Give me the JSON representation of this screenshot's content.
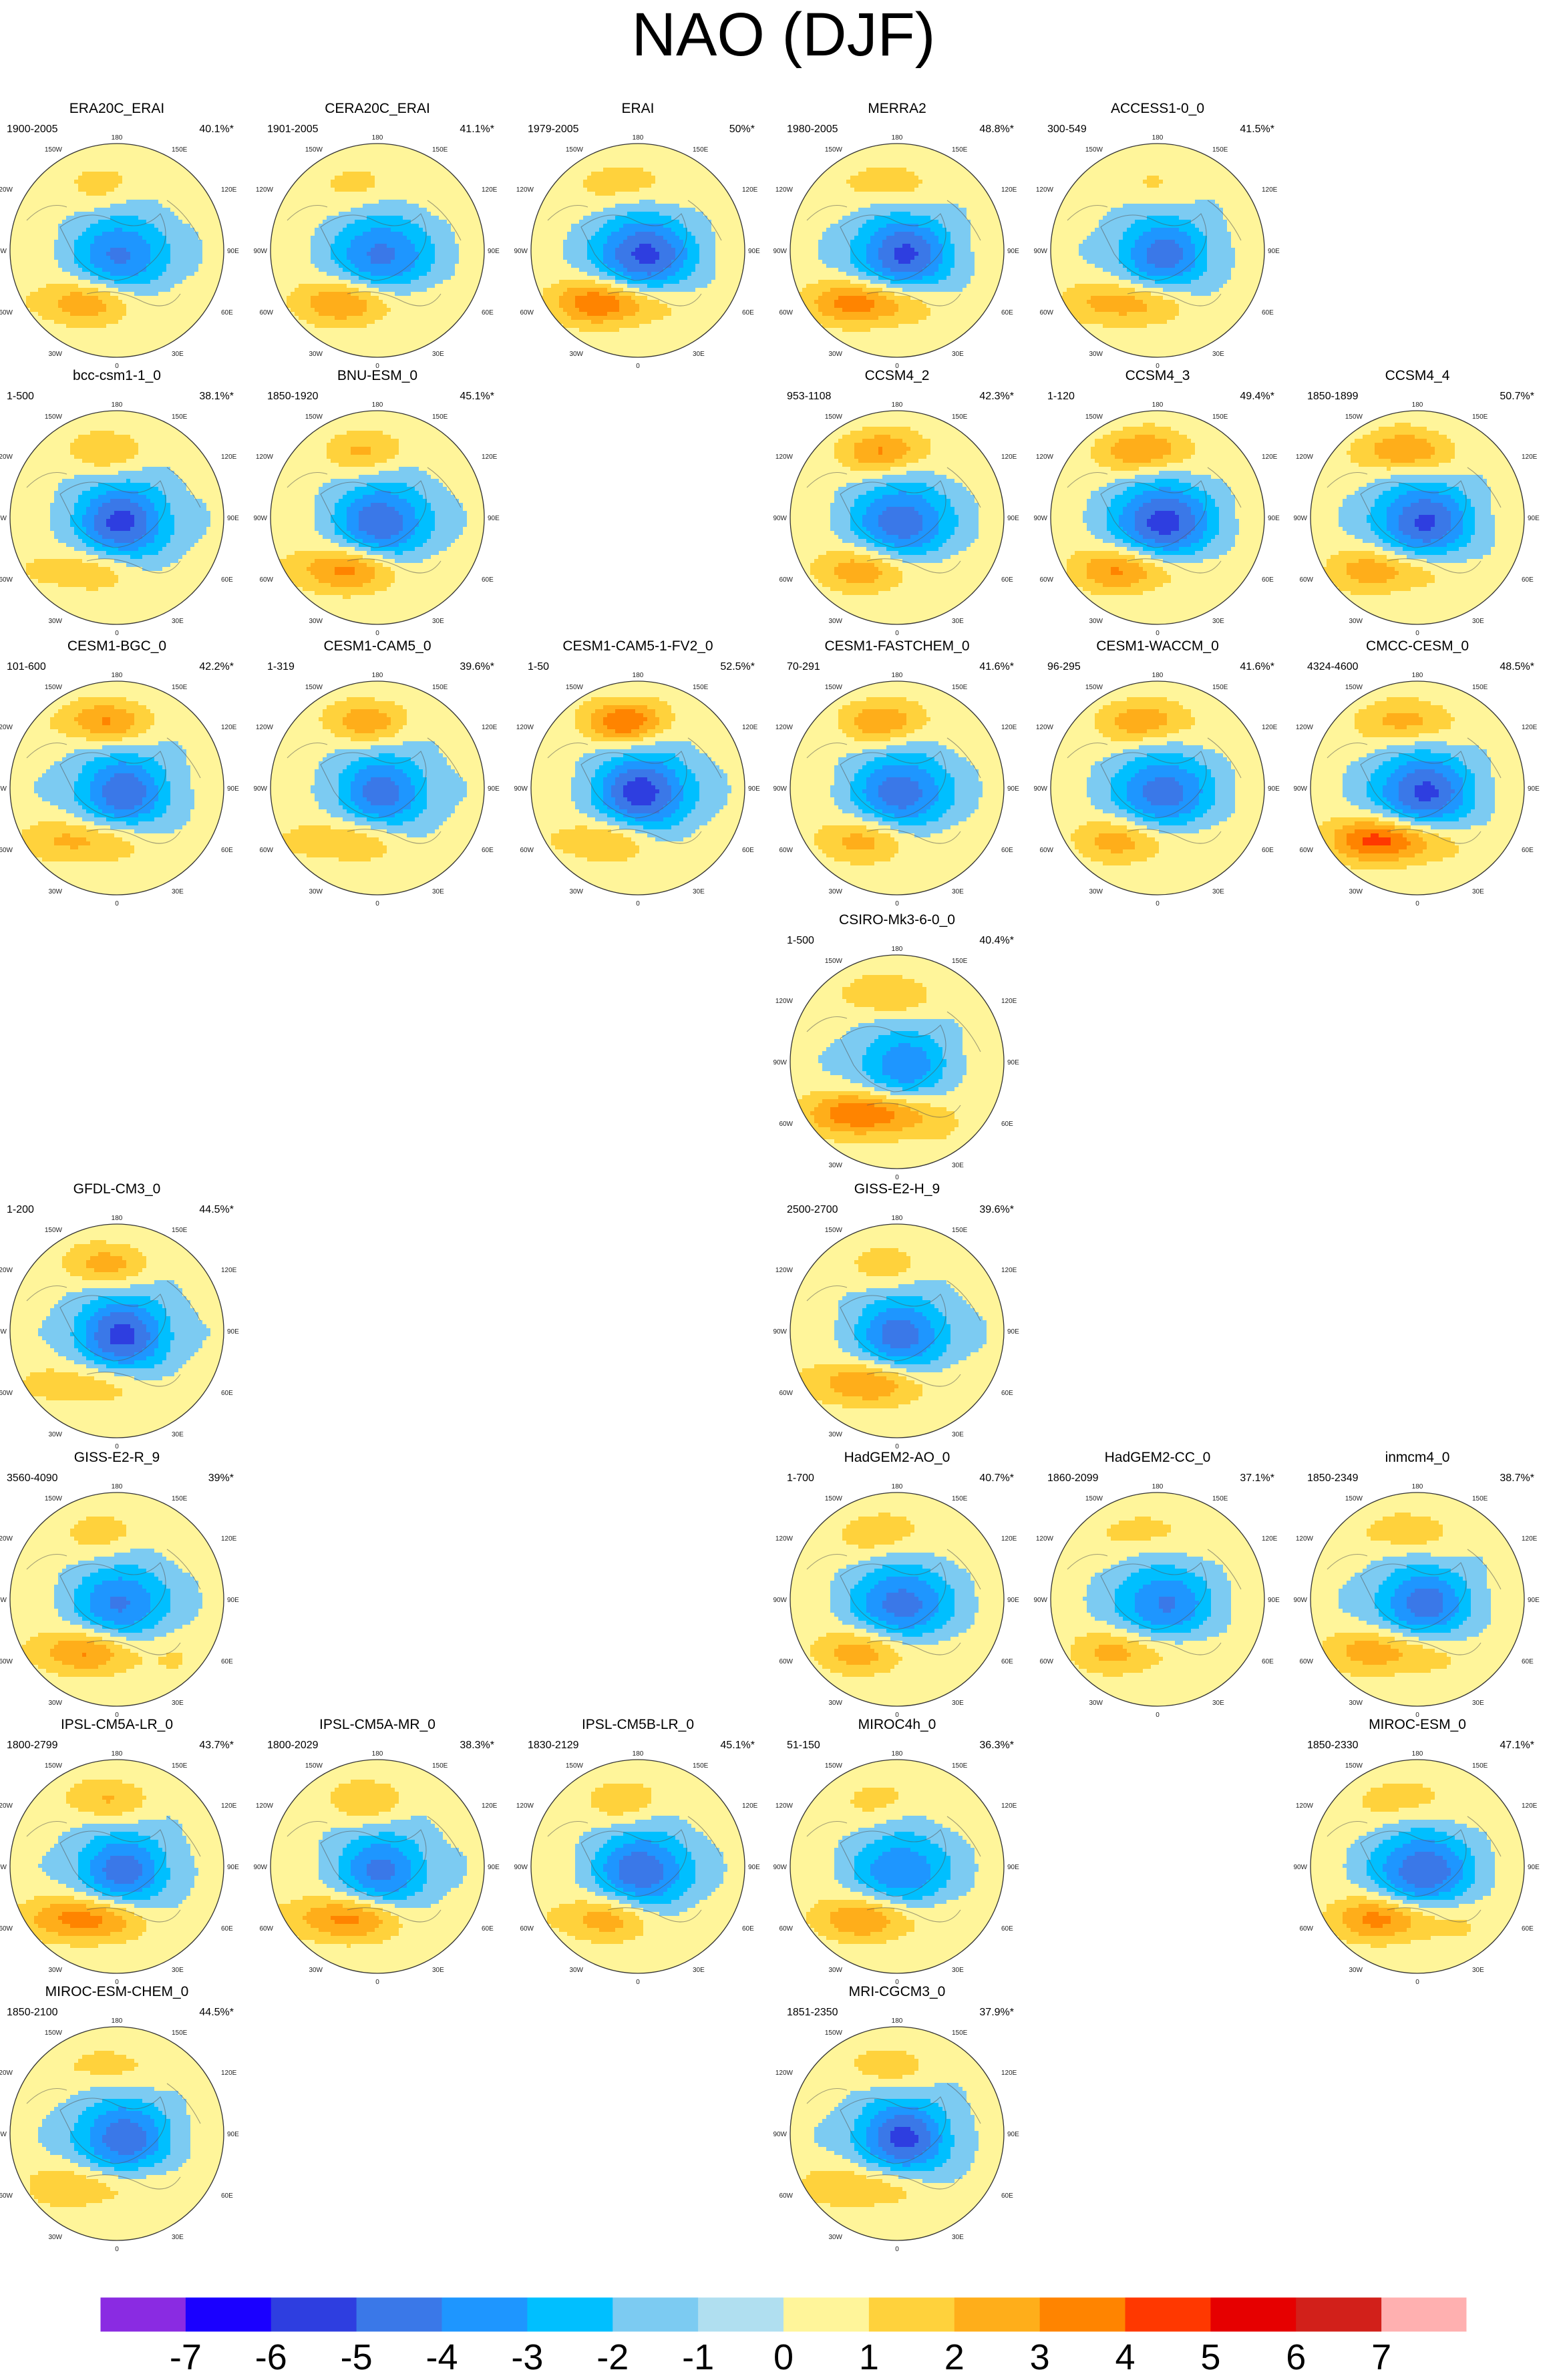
{
  "title": "NAO (DJF)",
  "chart_data": {
    "type": "contour-map-panels",
    "title": "NAO (DJF)",
    "projection": "north polar stereographic",
    "map_labels": {
      "top": "180",
      "bottom": "0",
      "left": "90W",
      "right": "90E",
      "upper_left": "150W",
      "upper_right": "150E",
      "mid_upper_left": "120W",
      "mid_upper_right": "120E",
      "mid_lower_left": "60W",
      "mid_lower_right": "60E",
      "lower_left": "30W",
      "lower_right": "30E"
    },
    "panels": [
      {
        "name": "ERA20C_ERAI",
        "years": "1900-2005",
        "percent": "40.1%*",
        "row": 0,
        "col": 0,
        "pattern": [
          -3.6,
          2.6,
          1.0,
          0.2
        ]
      },
      {
        "name": "CERA20C_ERAI",
        "years": "1901-2005",
        "percent": "41.1%*",
        "row": 0,
        "col": 1,
        "pattern": [
          -3.8,
          2.9,
          1.0,
          0.2
        ]
      },
      {
        "name": "ERAI",
        "years": "1979-2005",
        "percent": "50%*",
        "row": 0,
        "col": 2,
        "pattern": [
          -4.8,
          4.0,
          1.4,
          0.2
        ]
      },
      {
        "name": "MERRA2",
        "years": "1980-2005",
        "percent": "48.8%*",
        "row": 0,
        "col": 3,
        "pattern": [
          -4.6,
          3.8,
          1.4,
          0.2
        ]
      },
      {
        "name": "ACCESS1-0_0",
        "years": "300-549",
        "percent": "41.5%*",
        "row": 0,
        "col": 4,
        "pattern": [
          -3.8,
          2.8,
          0.8,
          0.2
        ]
      },
      {
        "name": "bcc-csm1-1_0",
        "years": "1-500",
        "percent": "38.1%*",
        "row": 1,
        "col": 0,
        "pattern": [
          -4.6,
          1.9,
          1.6,
          0.2
        ]
      },
      {
        "name": "BNU-ESM_0",
        "years": "1850-1920",
        "percent": "45.1%*",
        "row": 1,
        "col": 1,
        "pattern": [
          -4.2,
          3.3,
          1.8,
          0.2
        ]
      },
      {
        "name": "CCSM4_2",
        "years": "953-1108",
        "percent": "42.3%*",
        "row": 1,
        "col": 3,
        "pattern": [
          -4.2,
          2.6,
          2.8,
          0.2
        ]
      },
      {
        "name": "CCSM4_3",
        "years": "1-120",
        "percent": "49.4%*",
        "row": 1,
        "col": 4,
        "pattern": [
          -5.0,
          3.2,
          2.9,
          0.2
        ]
      },
      {
        "name": "CCSM4_4",
        "years": "1850-1899",
        "percent": "50.7%*",
        "row": 1,
        "col": 5,
        "pattern": [
          -4.6,
          2.8,
          2.9,
          0.2
        ]
      },
      {
        "name": "CESM1-BGC_0",
        "years": "101-600",
        "percent": "42.2%*",
        "row": 2,
        "col": 0,
        "pattern": [
          -4.1,
          2.5,
          2.9,
          0.2
        ]
      },
      {
        "name": "CESM1-CAM5_0",
        "years": "1-319",
        "percent": "39.6%*",
        "row": 2,
        "col": 1,
        "pattern": [
          -3.8,
          2.0,
          2.4,
          0.2
        ]
      },
      {
        "name": "CESM1-CAM5-1-FV2_0",
        "years": "1-50",
        "percent": "52.5%*",
        "row": 2,
        "col": 2,
        "pattern": [
          -4.9,
          2.1,
          3.6,
          0.2
        ]
      },
      {
        "name": "CESM1-FASTCHEM_0",
        "years": "70-291",
        "percent": "41.6%*",
        "row": 2,
        "col": 3,
        "pattern": [
          -4.1,
          2.3,
          2.6,
          0.2
        ]
      },
      {
        "name": "CESM1-WACCM_0",
        "years": "96-295",
        "percent": "41.6%*",
        "row": 2,
        "col": 4,
        "pattern": [
          -4.1,
          2.4,
          2.6,
          0.2
        ]
      },
      {
        "name": "CMCC-CESM_0",
        "years": "4324-4600",
        "percent": "48.5%*",
        "row": 2,
        "col": 5,
        "pattern": [
          -4.7,
          4.6,
          2.3,
          0.2
        ]
      },
      {
        "name": "CSIRO-Mk3-6-0_0",
        "years": "1-500",
        "percent": "40.4%*",
        "row": 3,
        "col": 3,
        "pattern": [
          -3.1,
          4.2,
          1.8,
          0.8
        ]
      },
      {
        "name": "GFDL-CM3_0",
        "years": "1-200",
        "percent": "44.5%*",
        "row": 4,
        "col": 0,
        "pattern": [
          -4.6,
          1.9,
          2.2,
          0.4
        ]
      },
      {
        "name": "GISS-E2-H_9",
        "years": "2500-2700",
        "percent": "39.6%*",
        "row": 4,
        "col": 3,
        "pattern": [
          -3.9,
          3.1,
          1.2,
          0.6
        ]
      },
      {
        "name": "GISS-E2-R_9",
        "years": "3560-4090",
        "percent": "39%*",
        "row": 5,
        "col": 0,
        "pattern": [
          -3.6,
          3.0,
          1.2,
          0.6
        ]
      },
      {
        "name": "HadGEM2-AO_0",
        "years": "1-700",
        "percent": "40.7%*",
        "row": 5,
        "col": 3,
        "pattern": [
          -4.0,
          2.5,
          1.5,
          0.2
        ]
      },
      {
        "name": "HadGEM2-CC_0",
        "years": "1860-2099",
        "percent": "37.1%*",
        "row": 5,
        "col": 4,
        "pattern": [
          -3.6,
          2.3,
          1.2,
          0.2
        ]
      },
      {
        "name": "inmcm4_0",
        "years": "1850-2349",
        "percent": "38.7%*",
        "row": 5,
        "col": 5,
        "pattern": [
          -3.9,
          2.8,
          1.5,
          0.4
        ]
      },
      {
        "name": "IPSL-CM5A-LR_0",
        "years": "1800-2799",
        "percent": "43.7%*",
        "row": 6,
        "col": 0,
        "pattern": [
          -3.9,
          3.8,
          1.8,
          0.2
        ]
      },
      {
        "name": "IPSL-CM5A-MR_0",
        "years": "1800-2029",
        "percent": "38.3%*",
        "row": 6,
        "col": 1,
        "pattern": [
          -3.6,
          3.4,
          1.6,
          0.2
        ]
      },
      {
        "name": "IPSL-CM5B-LR_0",
        "years": "1830-2129",
        "percent": "45.1%*",
        "row": 6,
        "col": 2,
        "pattern": [
          -4.2,
          2.5,
          1.4,
          0.2
        ]
      },
      {
        "name": "MIROC4h_0",
        "years": "51-150",
        "percent": "36.3%*",
        "row": 6,
        "col": 3,
        "pattern": [
          -3.4,
          2.9,
          1.0,
          0.4
        ]
      },
      {
        "name": "MIROC-ESM_0",
        "years": "1850-2330",
        "percent": "47.1%*",
        "row": 6,
        "col": 5,
        "pattern": [
          -4.4,
          3.4,
          1.4,
          0.5
        ]
      },
      {
        "name": "MIROC-ESM-CHEM_0",
        "years": "1850-2100",
        "percent": "44.5%*",
        "row": 7,
        "col": 0,
        "pattern": [
          -4.1,
          2.0,
          1.2,
          0.5
        ]
      },
      {
        "name": "MRI-CGCM3_0",
        "years": "1851-2350",
        "percent": "37.9%*",
        "row": 7,
        "col": 3,
        "pattern": [
          -4.6,
          2.2,
          1.4,
          0.2
        ]
      }
    ],
    "colorbar": {
      "labels": [
        "-7",
        "-6",
        "-5",
        "-4",
        "-3",
        "-2",
        "-1",
        "0",
        "1",
        "2",
        "3",
        "4",
        "5",
        "6",
        "7"
      ],
      "colors": [
        "#8a2be2",
        "#1a00ff",
        "#2e3ee0",
        "#3a78e8",
        "#1e96ff",
        "#00bfff",
        "#7ccbf2",
        "#b0dff0",
        "#fff59a",
        "#ffd23c",
        "#ffae1a",
        "#ff8400",
        "#ff3800",
        "#e60000",
        "#d2201a",
        "#ffb0b0"
      ],
      "range": [
        -7,
        7
      ]
    }
  }
}
